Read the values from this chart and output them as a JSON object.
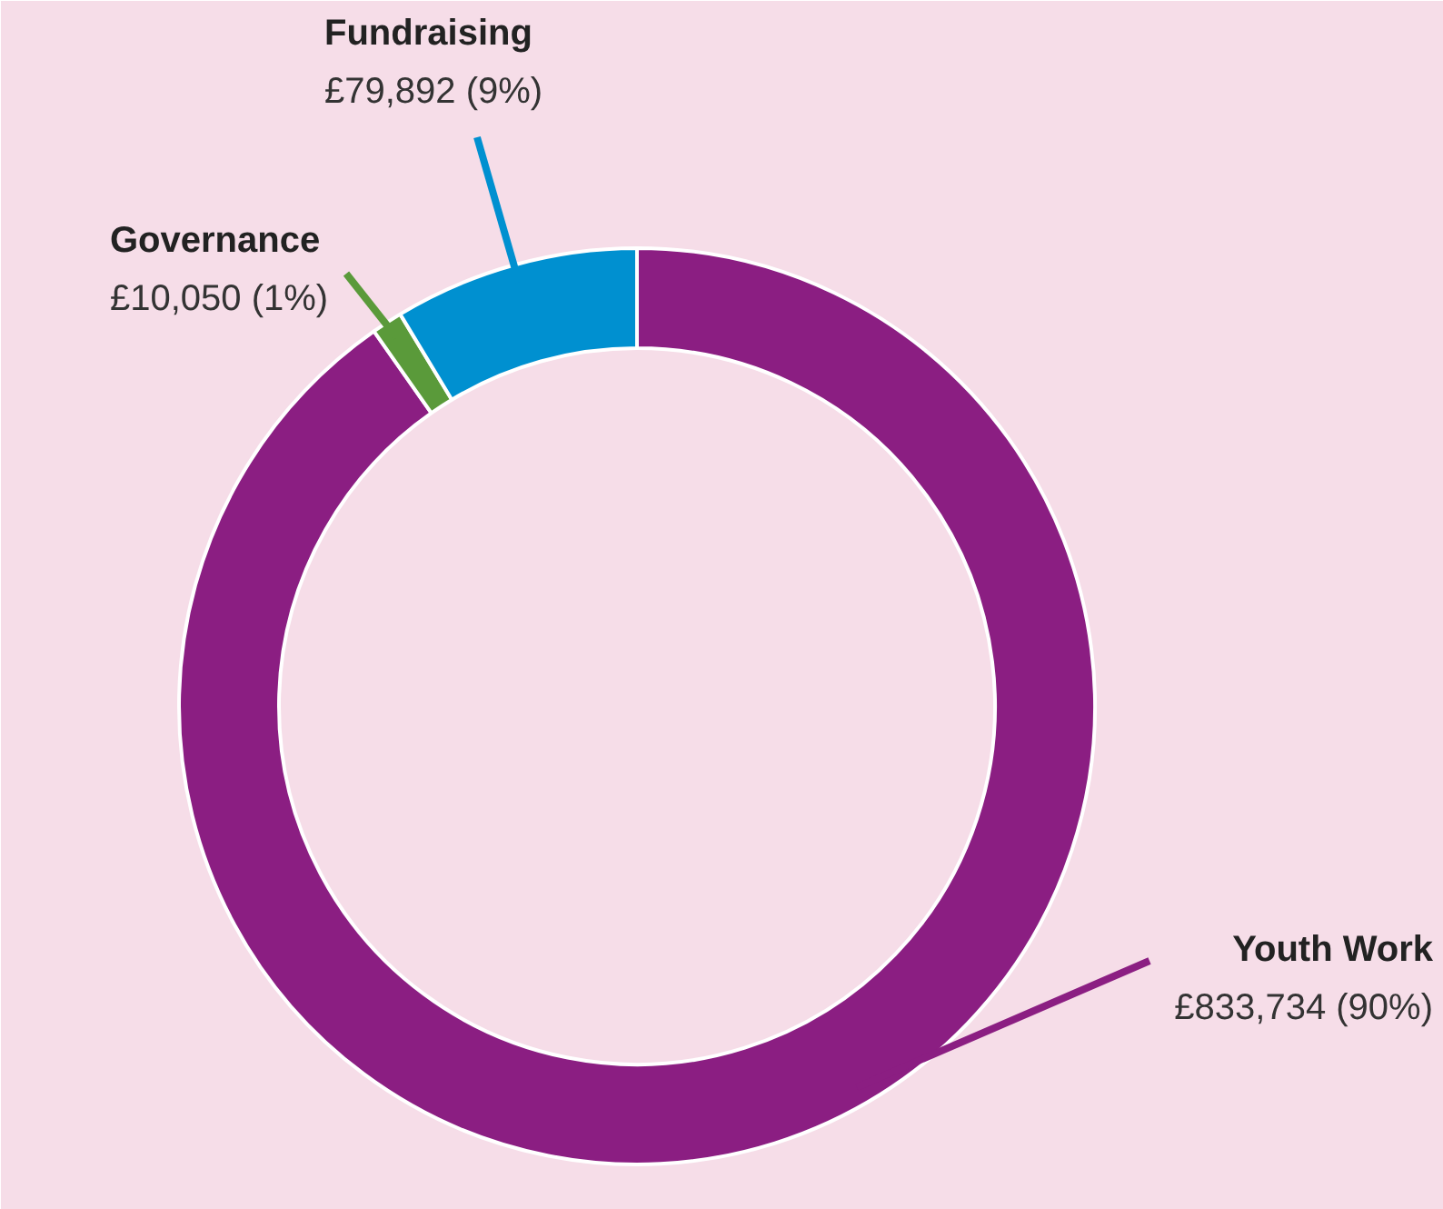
{
  "chart_data": {
    "type": "donut",
    "categories": [
      "Youth Work",
      "Governance",
      "Fundraising"
    ],
    "values": [
      833734,
      10050,
      79892
    ],
    "colors": [
      "#8b1e82",
      "#5a9a3a",
      "#0090d0"
    ],
    "value_labels": [
      "£833,734 (90%)",
      "£10,050  (1%)",
      "£79,892  (9%)"
    ]
  }
}
